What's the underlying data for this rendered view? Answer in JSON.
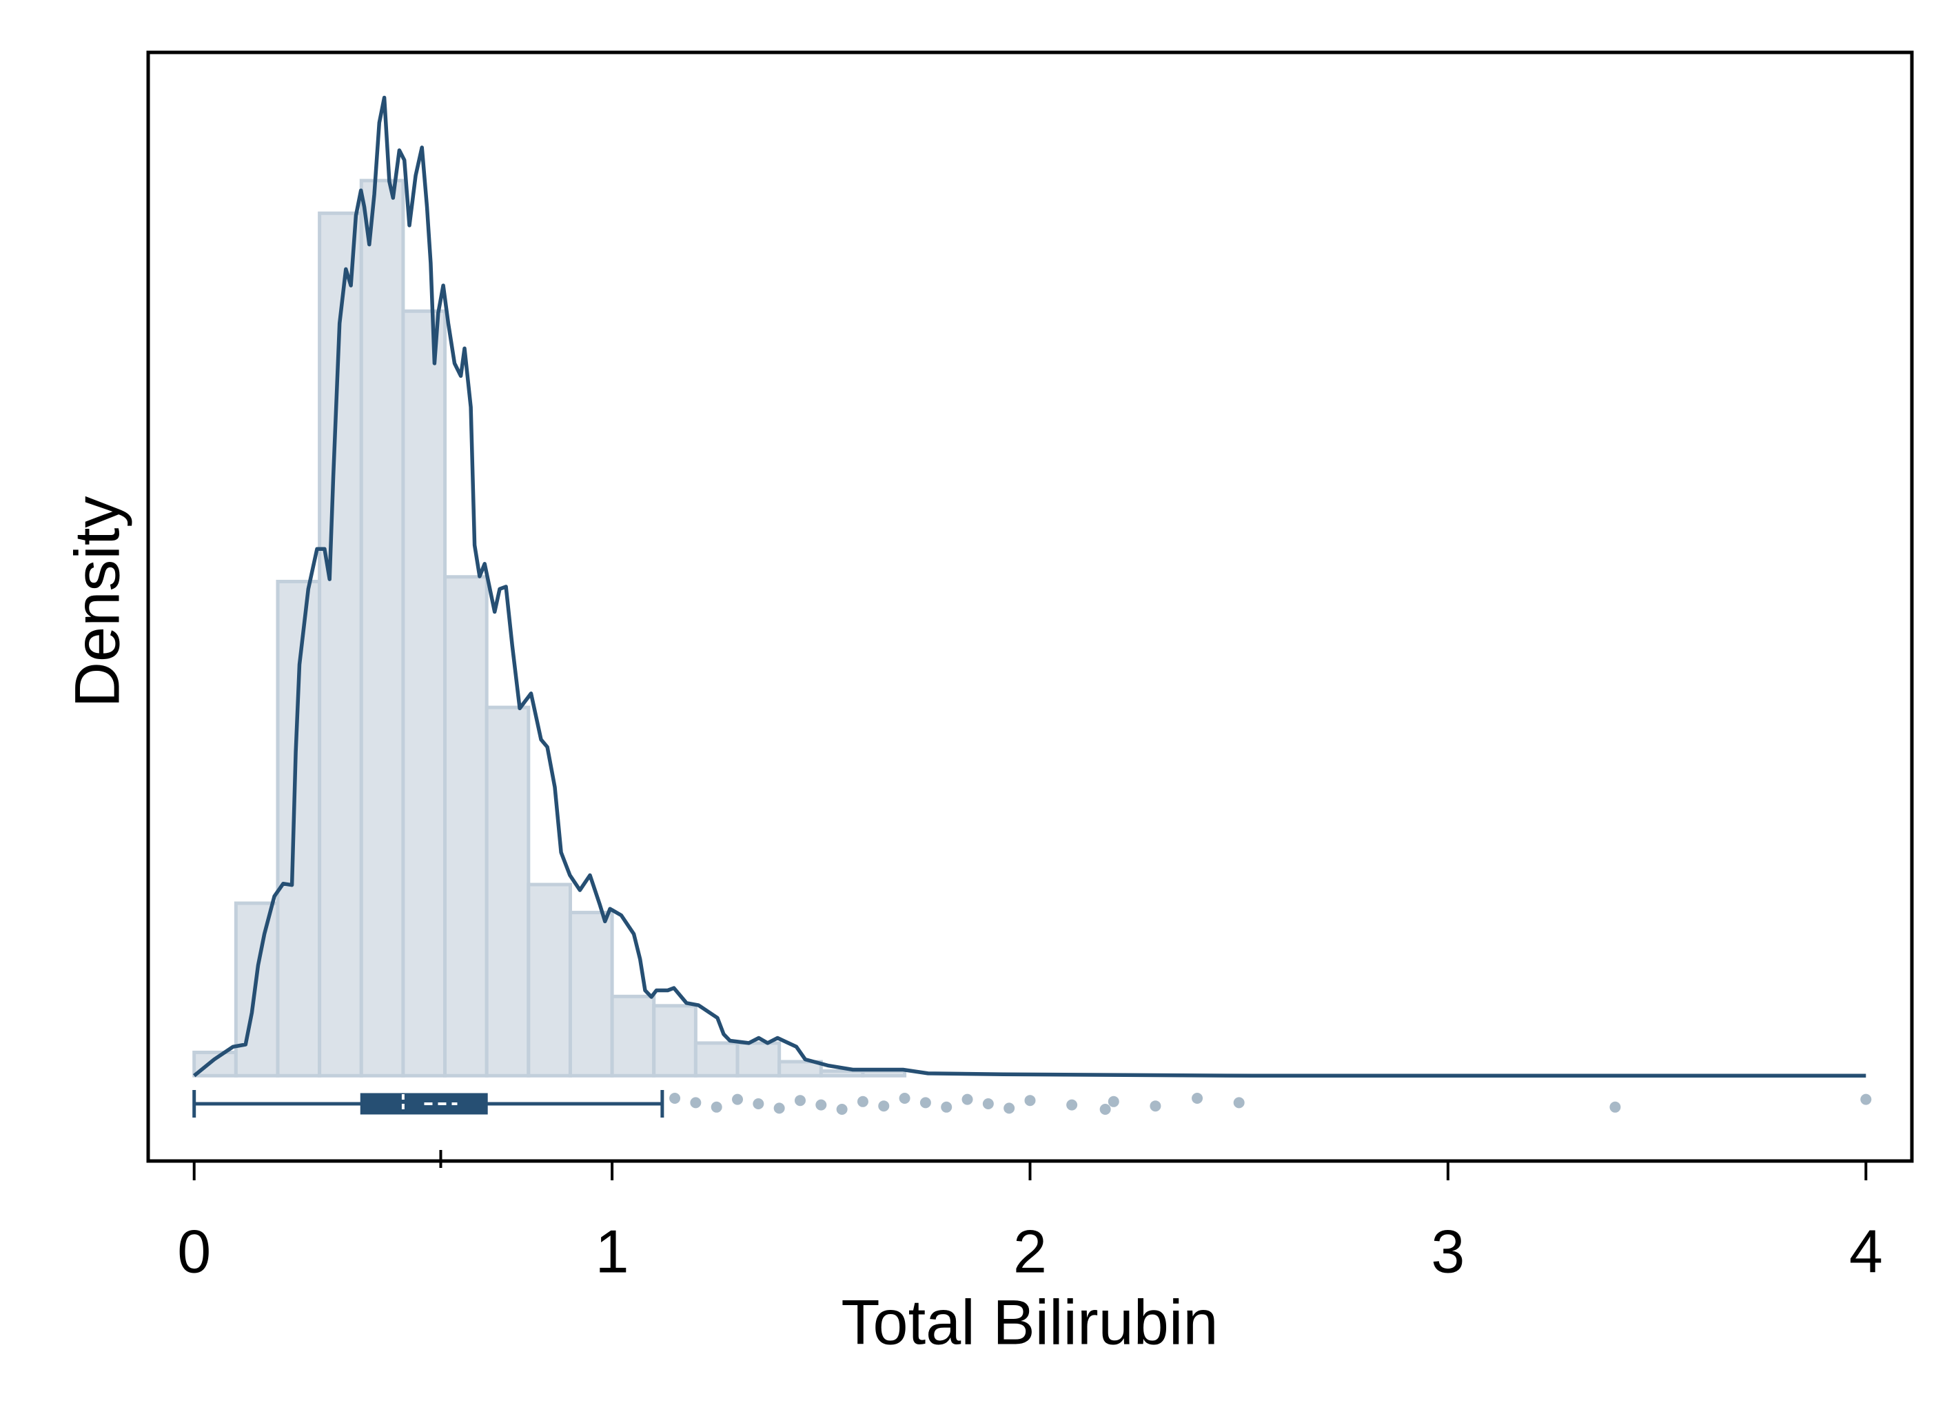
{
  "chart_data": {
    "type": "histogram",
    "x_label": "Total Bilirubin",
    "y_label": "Density",
    "xlim": [
      -0.11,
      4.11
    ],
    "ylim": [
      -0.183,
      2.195
    ],
    "xticks": [
      0,
      1,
      2,
      3,
      4
    ],
    "bins": [
      0,
      0.1,
      0.2,
      0.3,
      0.4,
      0.5,
      0.6,
      0.7,
      0.8,
      0.9,
      1.0,
      1.1,
      1.2,
      1.3,
      1.4,
      1.5,
      1.6,
      1.7
    ],
    "values": [
      0.05,
      0.37,
      1.06,
      1.85,
      1.92,
      1.64,
      1.07,
      0.79,
      0.41,
      0.35,
      0.17,
      0.15,
      0.07,
      0.07,
      0.03,
      0.01,
      0.01
    ],
    "color": "#dbe2e9",
    "edge_color": "#c2cfdb",
    "density": {
      "color": "#264f73",
      "x": [
        0,
        0.048,
        0.093,
        0.123,
        0.138,
        0.153,
        0.168,
        0.192,
        0.213,
        0.234,
        0.243,
        0.252,
        0.273,
        0.294,
        0.312,
        0.324,
        0.333,
        0.348,
        0.363,
        0.375,
        0.387,
        0.399,
        0.407,
        0.419,
        0.431,
        0.443,
        0.455,
        0.467,
        0.476,
        0.491,
        0.503,
        0.515,
        0.53,
        0.545,
        0.557,
        0.566,
        0.575,
        0.584,
        0.596,
        0.608,
        0.623,
        0.638,
        0.647,
        0.662,
        0.671,
        0.683,
        0.695,
        0.719,
        0.731,
        0.746,
        0.761,
        0.779,
        0.806,
        0.83,
        0.845,
        0.863,
        0.878,
        0.899,
        0.923,
        0.947,
        0.971,
        0.983,
        0.995,
        1.022,
        1.052,
        1.067,
        1.079,
        1.094,
        1.106,
        1.133,
        1.148,
        1.178,
        1.207,
        1.252,
        1.267,
        1.282,
        1.327,
        1.351,
        1.372,
        1.396,
        1.441,
        1.462,
        1.516,
        1.576,
        1.696,
        1.756,
        1.936,
        2.535,
        4
      ],
      "values": [
        0,
        0.035,
        0.062,
        0.067,
        0.135,
        0.237,
        0.304,
        0.385,
        0.412,
        0.409,
        0.694,
        0.882,
        1.044,
        1.13,
        1.13,
        1.065,
        1.286,
        1.614,
        1.73,
        1.695,
        1.845,
        1.899,
        1.864,
        1.783,
        1.891,
        2.044,
        2.098,
        1.918,
        1.883,
        1.985,
        1.964,
        1.824,
        1.931,
        1.991,
        1.864,
        1.743,
        1.528,
        1.636,
        1.695,
        1.614,
        1.528,
        1.501,
        1.56,
        1.434,
        1.138,
        1.071,
        1.098,
        0.995,
        1.044,
        1.049,
        0.923,
        0.788,
        0.82,
        0.721,
        0.705,
        0.619,
        0.479,
        0.43,
        0.398,
        0.43,
        0.366,
        0.331,
        0.358,
        0.344,
        0.304,
        0.25,
        0.183,
        0.169,
        0.183,
        0.183,
        0.188,
        0.156,
        0.151,
        0.124,
        0.089,
        0.075,
        0.07,
        0.081,
        0.07,
        0.081,
        0.062,
        0.035,
        0.022,
        0.013,
        0.013,
        0.005,
        0.003,
        0,
        0
      ]
    },
    "boxplot": {
      "color": "#264f73",
      "whisker_low": 0,
      "q1": 0.4,
      "median": 0.5,
      "mean": 0.59,
      "q3": 0.7,
      "whisker_high": 1.12,
      "outliers": [
        1.15,
        1.2,
        1.25,
        1.3,
        1.35,
        1.4,
        1.45,
        1.5,
        1.55,
        1.6,
        1.65,
        1.7,
        1.75,
        1.8,
        1.85,
        1.9,
        1.95,
        2.0,
        2.1,
        2.18,
        2.2,
        2.3,
        2.4,
        2.5,
        3.4,
        4.0
      ]
    }
  }
}
